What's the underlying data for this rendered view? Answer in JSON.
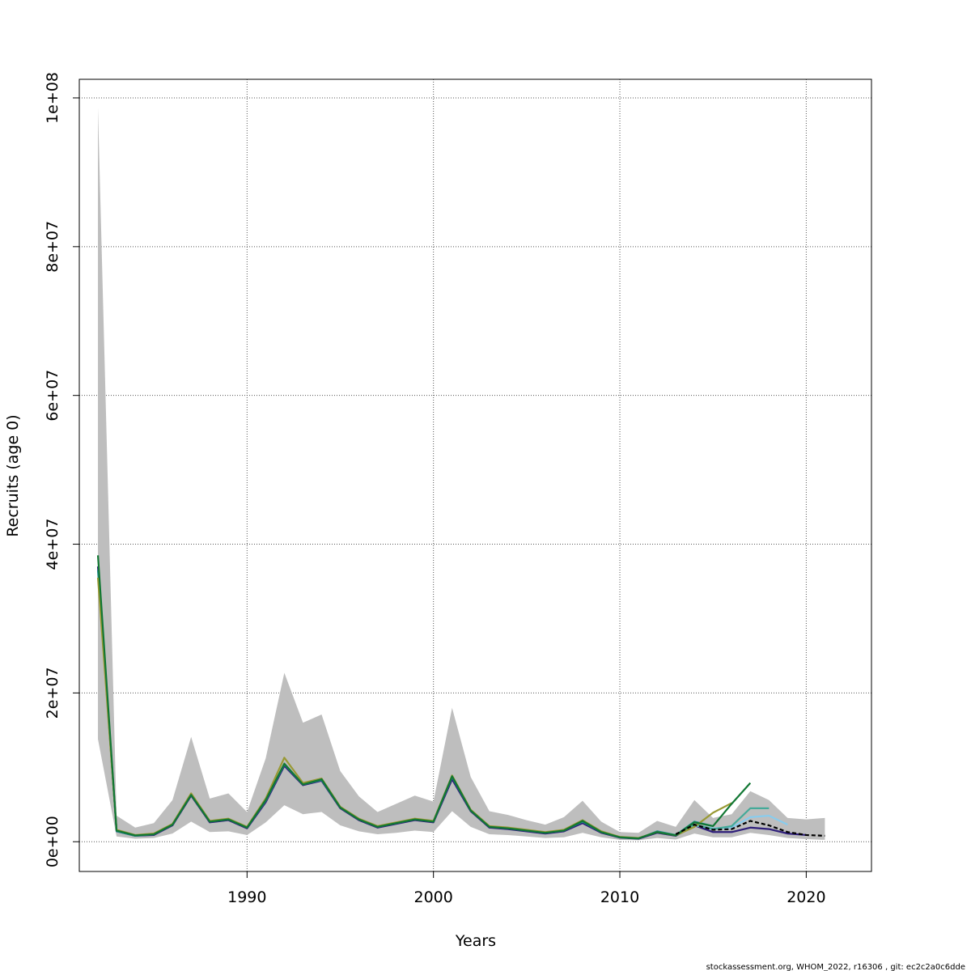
{
  "chart_data": {
    "type": "line",
    "xlabel": "Years",
    "ylabel": "Recruits (age 0)",
    "xlim": [
      1981,
      2023.5
    ],
    "ylim": [
      -4000000,
      102500000
    ],
    "x_ticks": [
      1990,
      2000,
      2010,
      2020
    ],
    "x_tick_labels": [
      "1990",
      "2000",
      "2010",
      "2020"
    ],
    "y_ticks": [
      0,
      20000000,
      40000000,
      60000000,
      80000000,
      100000000
    ],
    "y_tick_labels": [
      "0e+00",
      "2e+07",
      "4e+07",
      "6e+07",
      "8e+07",
      "1e+08"
    ],
    "grid": true,
    "confidence_band": {
      "x": [
        1982,
        1983,
        1984,
        1985,
        1986,
        1987,
        1988,
        1989,
        1990,
        1991,
        1992,
        1993,
        1994,
        1995,
        1996,
        1997,
        1998,
        1999,
        2000,
        2001,
        2002,
        2003,
        2004,
        2005,
        2006,
        2007,
        2008,
        2009,
        2010,
        2011,
        2012,
        2013,
        2014,
        2015,
        2016,
        2017,
        2018,
        2019,
        2020,
        2021
      ],
      "lower": [
        13800000,
        700000,
        400000,
        500000,
        1100000,
        2700000,
        1300000,
        1400000,
        900000,
        2600000,
        4900000,
        3700000,
        4000000,
        2200000,
        1400000,
        1000000,
        1200000,
        1500000,
        1300000,
        4100000,
        2000000,
        1000000,
        900000,
        700000,
        500000,
        600000,
        1200000,
        600000,
        250000,
        200000,
        500000,
        300000,
        1100000,
        600000,
        600000,
        1200000,
        900000,
        500000,
        350000,
        250000
      ],
      "upper": [
        98700000,
        3500000,
        1900000,
        2500000,
        5600000,
        14100000,
        5800000,
        6500000,
        4000000,
        11200000,
        22700000,
        16000000,
        17100000,
        9500000,
        6100000,
        4000000,
        5100000,
        6200000,
        5400000,
        18000000,
        8700000,
        4100000,
        3600000,
        2900000,
        2300000,
        3300000,
        5500000,
        2700000,
        1300000,
        1200000,
        2800000,
        2000000,
        5600000,
        3200000,
        3700000,
        6800000,
        5600000,
        3200000,
        3000000,
        3200000
      ]
    },
    "series": [
      {
        "color": "#2e1e7a",
        "dash": false,
        "x": [
          1982,
          1983,
          1984,
          1985,
          1986,
          1987,
          1988,
          1989,
          1990,
          1991,
          1992,
          1993,
          1994,
          1995,
          1996,
          1997,
          1998,
          1999,
          2000,
          2001,
          2002,
          2003,
          2004,
          2005,
          2006,
          2007,
          2008,
          2009,
          2010,
          2011,
          2012,
          2013,
          2014,
          2015,
          2016,
          2017,
          2018,
          2019,
          2020
        ],
        "values": [
          37000000,
          1400000,
          800000,
          900000,
          2200000,
          6200000,
          2600000,
          2900000,
          1800000,
          5300000,
          10200000,
          7600000,
          8200000,
          4500000,
          2900000,
          1900000,
          2400000,
          2900000,
          2600000,
          8400000,
          4100000,
          1900000,
          1700000,
          1400000,
          1100000,
          1400000,
          2500000,
          1200000,
          550000,
          400000,
          1200000,
          800000,
          2200000,
          1300000,
          1300000,
          1900000,
          1700000,
          1100000,
          900000
        ]
      },
      {
        "color": "#1f8a8a",
        "dash": false,
        "x": [
          1982,
          1983,
          1984,
          1985,
          1986,
          1987,
          1988,
          1989,
          1990,
          1991,
          1992,
          1993,
          1994,
          1995,
          1996,
          1997,
          1998,
          1999,
          2000,
          2001,
          2002,
          2003,
          2004,
          2005,
          2006,
          2007,
          2008,
          2009,
          2010,
          2011,
          2012,
          2013,
          2014,
          2015
        ],
        "values": [
          36500000,
          1400000,
          800000,
          1000000,
          2300000,
          6300000,
          2700000,
          3000000,
          1900000,
          5500000,
          10400000,
          7700000,
          8300000,
          4600000,
          3000000,
          2000000,
          2500000,
          3000000,
          2700000,
          8700000,
          4200000,
          2000000,
          1800000,
          1500000,
          1200000,
          1500000,
          2700000,
          1300000,
          600000,
          450000,
          1400000,
          900000,
          2700000,
          2100000
        ]
      },
      {
        "color": "#88ccee",
        "dash": false,
        "x": [
          2013,
          2014,
          2015,
          2016,
          2017,
          2018,
          2019
        ],
        "values": [
          1000000,
          2200000,
          1800000,
          1900000,
          3300000,
          3500000,
          2300000
        ]
      },
      {
        "color": "#44aa99",
        "dash": false,
        "x": [
          2013,
          2014,
          2015,
          2016,
          2017,
          2018
        ],
        "values": [
          900000,
          2300000,
          1700000,
          2100000,
          4500000,
          4500000
        ]
      },
      {
        "color": "#999933",
        "dash": false,
        "x": [
          1982,
          1983,
          1984,
          1985,
          1986,
          1987,
          1988,
          1989,
          1990,
          1991,
          1992,
          1993,
          1994,
          1995,
          1996,
          1997,
          1998,
          1999,
          2000,
          2001,
          2002,
          2003,
          2004,
          2005,
          2006,
          2007,
          2008,
          2009,
          2010,
          2011,
          2012,
          2013,
          2014,
          2015,
          2016
        ],
        "values": [
          35500000,
          1600000,
          900000,
          1100000,
          2400000,
          6500000,
          2800000,
          3100000,
          2000000,
          5800000,
          11300000,
          7900000,
          8500000,
          4700000,
          3100000,
          2100000,
          2600000,
          3100000,
          2800000,
          8900000,
          4300000,
          2100000,
          1900000,
          1600000,
          1300000,
          1600000,
          2900000,
          1400000,
          650000,
          500000,
          1300000,
          850000,
          2000000,
          3900000,
          5200000
        ]
      },
      {
        "color": "#117733",
        "dash": false,
        "x": [
          1982,
          1983,
          1984,
          1985,
          1986,
          1987,
          1988,
          1989,
          1990,
          1991,
          1992,
          1993,
          1994,
          1995,
          1996,
          1997,
          1998,
          1999,
          2000,
          2001,
          2002,
          2003,
          2004,
          2005,
          2006,
          2007,
          2008,
          2009,
          2010,
          2011,
          2012,
          2013,
          2014,
          2015,
          2016,
          2017
        ],
        "values": [
          38500000,
          1500000,
          850000,
          1000000,
          2300000,
          6300000,
          2700000,
          3000000,
          1900000,
          5600000,
          10500000,
          7700000,
          8400000,
          4600000,
          3000000,
          2000000,
          2500000,
          3000000,
          2700000,
          8800000,
          4200000,
          2000000,
          1800000,
          1500000,
          1200000,
          1500000,
          2800000,
          1300000,
          600000,
          450000,
          1300000,
          850000,
          2600000,
          2100000,
          5100000,
          7900000
        ]
      },
      {
        "color": "#000000",
        "dash": true,
        "x": [
          2013,
          2014,
          2015,
          2016,
          2017,
          2018,
          2019,
          2020,
          2021
        ],
        "values": [
          1000000,
          2300000,
          1600000,
          1700000,
          2800000,
          2200000,
          1300000,
          900000,
          800000
        ]
      }
    ]
  },
  "footer": "stockassessment.org, WHOM_2022, r16306 , git: ec2c2a0c6dde"
}
